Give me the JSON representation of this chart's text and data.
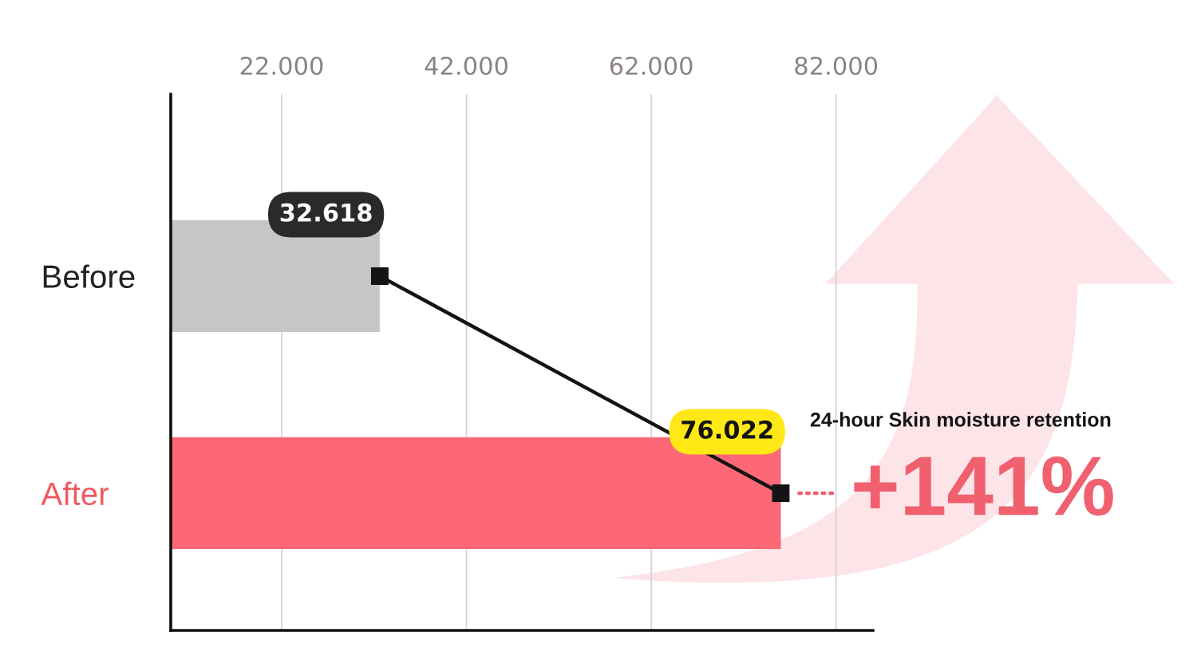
{
  "chart_data": {
    "type": "bar",
    "orientation": "horizontal",
    "categories": [
      "Before",
      "After"
    ],
    "series": [
      {
        "colors": [
          "#c6c6c6",
          "#fc6876"
        ],
        "values": [
          32.618,
          76.022
        ],
        "value_labels": [
          "32.618",
          "76.022"
        ]
      },
      {
        "type": "line",
        "color": "#141414",
        "values": [
          32.618,
          76.022
        ]
      }
    ],
    "xlim": [
      10,
      86
    ],
    "xticks": [
      {
        "value": 22,
        "label": "22.000"
      },
      {
        "value": 42,
        "label": "42.000"
      },
      {
        "value": 62,
        "label": "62.000"
      },
      {
        "value": 82,
        "label": "82.000"
      }
    ],
    "grid": "x",
    "marker": "square",
    "annotations": [
      "24-hour Skin moisture retention",
      {
        "text": "+141%",
        "x": 76.022,
        "y": "After"
      }
    ]
  }
}
